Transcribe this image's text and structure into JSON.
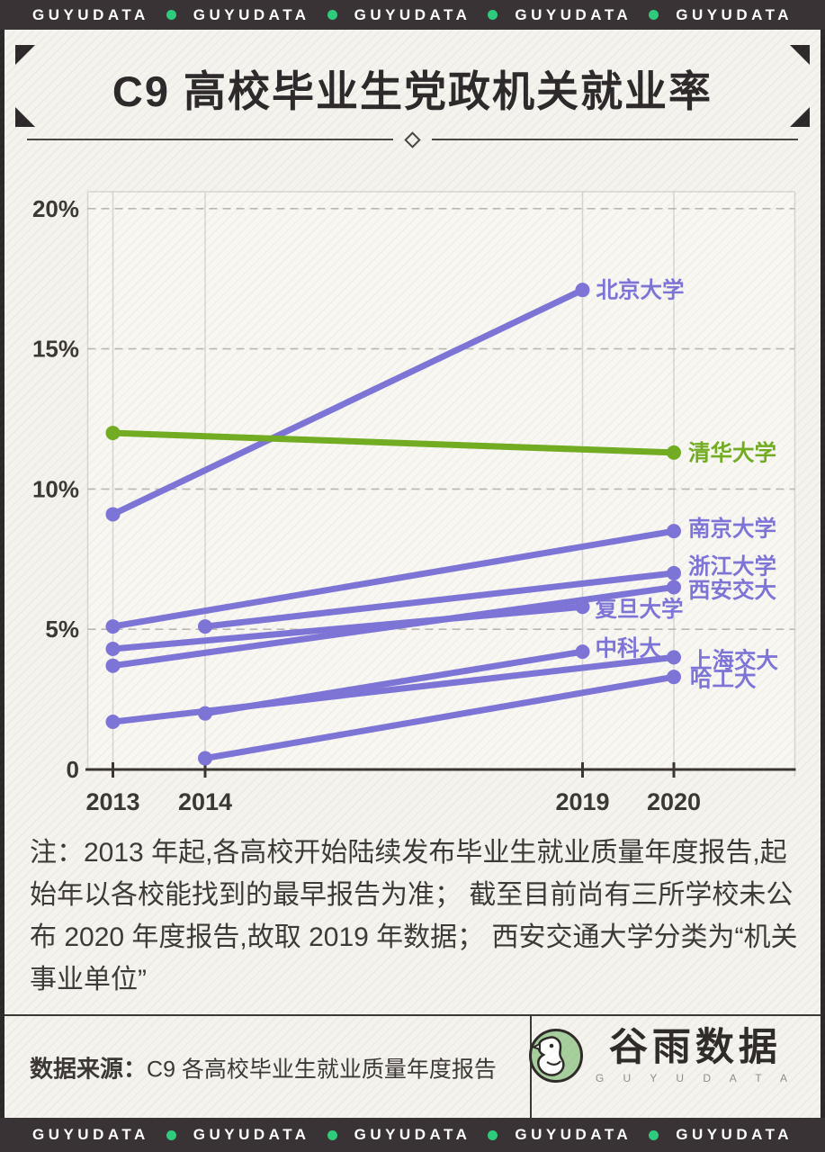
{
  "banner": {
    "brand": "GUYUDATA",
    "repeat": 5,
    "bg_color": "#3a3335",
    "dot_color": "#2ecb7d"
  },
  "title": {
    "text": "C9 高校毕业生党政机关就业率"
  },
  "chart_data": {
    "type": "line",
    "title": "C9 高校毕业生党政机关就业率",
    "unit": "%",
    "x_ticks": [
      "2013",
      "2014",
      "2019",
      "2020"
    ],
    "y_ticks": [
      {
        "label": "20%",
        "value": 20
      },
      {
        "label": "15%",
        "value": 15
      },
      {
        "label": "10%",
        "value": 10
      },
      {
        "label": "5%",
        "value": 5
      },
      {
        "label": "0",
        "value": 0
      }
    ],
    "ylim": [
      0,
      20.6
    ],
    "grid": {
      "horizontal": "dashed",
      "vertical": "solid"
    },
    "legend_position": "line-end-labels",
    "series": [
      {
        "name": "北京大学",
        "color": "#7d74d8",
        "points": [
          [
            2013,
            9.1
          ],
          [
            2019,
            17.1
          ]
        ]
      },
      {
        "name": "南京大学",
        "color": "#7d74d8",
        "points": [
          [
            2013,
            5.1
          ],
          [
            2020,
            8.5
          ]
        ]
      },
      {
        "name": "浙江大学",
        "color": "#7d74d8",
        "points": [
          [
            2014,
            5.1
          ],
          [
            2020,
            7.0
          ]
        ]
      },
      {
        "name": "西安交大",
        "color": "#7d74d8",
        "points": [
          [
            2013,
            3.7
          ],
          [
            2020,
            6.5
          ]
        ]
      },
      {
        "name": "复旦大学",
        "color": "#7d74d8",
        "points": [
          [
            2013,
            4.3
          ],
          [
            2019,
            5.8
          ]
        ]
      },
      {
        "name": "中科大",
        "color": "#7d74d8",
        "points": [
          [
            2014,
            2.0
          ],
          [
            2019,
            4.2
          ]
        ]
      },
      {
        "name": "上海交大",
        "color": "#7d74d8",
        "points": [
          [
            2013,
            1.7
          ],
          [
            2020,
            4.0
          ]
        ]
      },
      {
        "name": "哈工大",
        "color": "#7d74d8",
        "points": [
          [
            2014,
            0.4
          ],
          [
            2020,
            3.3
          ]
        ]
      },
      {
        "name": "清华大学",
        "color": "#72ad21",
        "points": [
          [
            2013,
            12.0
          ],
          [
            2020,
            11.3
          ]
        ]
      }
    ]
  },
  "note": {
    "text": "注：2013 年起,各高校开始陆续发布毕业生就业质量年度报告,起始年以各校能找到的最早报告为准； 截至目前尚有三所学校未公布 2020 年度报告,故取 2019 年数据； 西安交通大学分类为“机关事业单位”"
  },
  "footer": {
    "source_label": "数据来源：",
    "source_text": "C9 各高校毕业生就业质量年度报告",
    "logo_cn": "谷雨数据",
    "logo_en": "G U Y U D A T A"
  }
}
